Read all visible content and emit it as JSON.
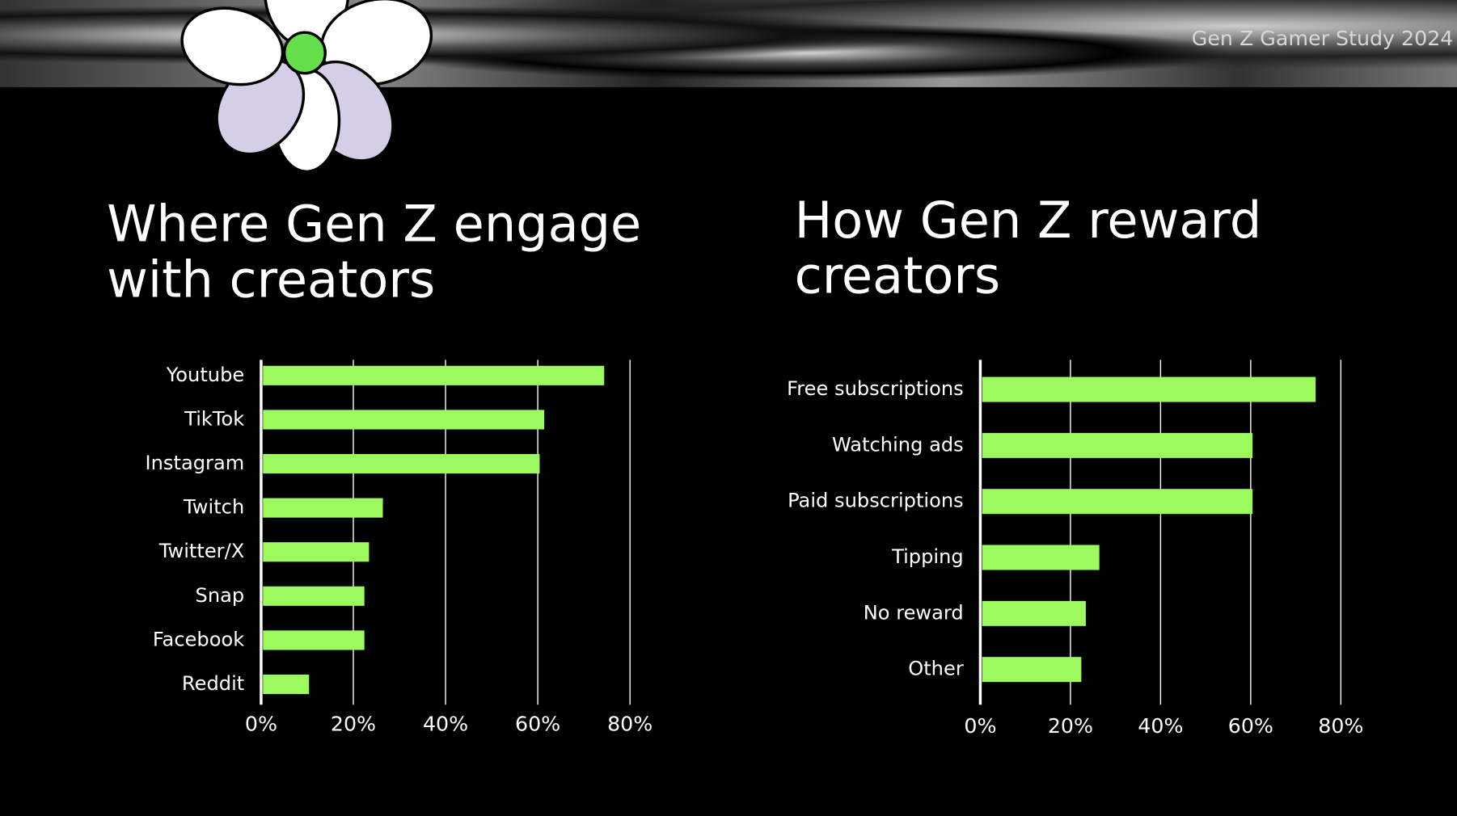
{
  "header": {
    "title": "Gen Z Gamer Study 2024"
  },
  "chart_data": [
    {
      "type": "bar",
      "orientation": "horizontal",
      "title": "Where Gen Z engage with creators",
      "categories": [
        "Youtube",
        "TikTok",
        "Instagram",
        "Twitch",
        "Twitter/X",
        "Snap",
        "Facebook",
        "Reddit"
      ],
      "values": [
        74,
        61,
        60,
        26,
        23,
        22,
        22,
        10
      ],
      "color": "#9cf95e",
      "xlim": [
        0,
        80
      ],
      "xticks": [
        {
          "value": 0,
          "label": "0%"
        },
        {
          "value": 20,
          "label": "20%"
        },
        {
          "value": 40,
          "label": "40%"
        },
        {
          "value": 60,
          "label": "60%"
        },
        {
          "value": 80,
          "label": "80%"
        }
      ],
      "grid": true
    },
    {
      "type": "bar",
      "orientation": "horizontal",
      "title": "How Gen Z reward creators",
      "categories": [
        "Free subscriptions",
        "Watching ads",
        "Paid subscriptions",
        "Tipping",
        "No reward",
        "Other"
      ],
      "values": [
        74,
        60,
        60,
        26,
        23,
        22
      ],
      "color": "#9cf95e",
      "xlim": [
        0,
        80
      ],
      "xticks": [
        {
          "value": 0,
          "label": "0%"
        },
        {
          "value": 20,
          "label": "20%"
        },
        {
          "value": 40,
          "label": "40%"
        },
        {
          "value": 60,
          "label": "60%"
        },
        {
          "value": 80,
          "label": "80%"
        }
      ],
      "grid": true
    }
  ]
}
